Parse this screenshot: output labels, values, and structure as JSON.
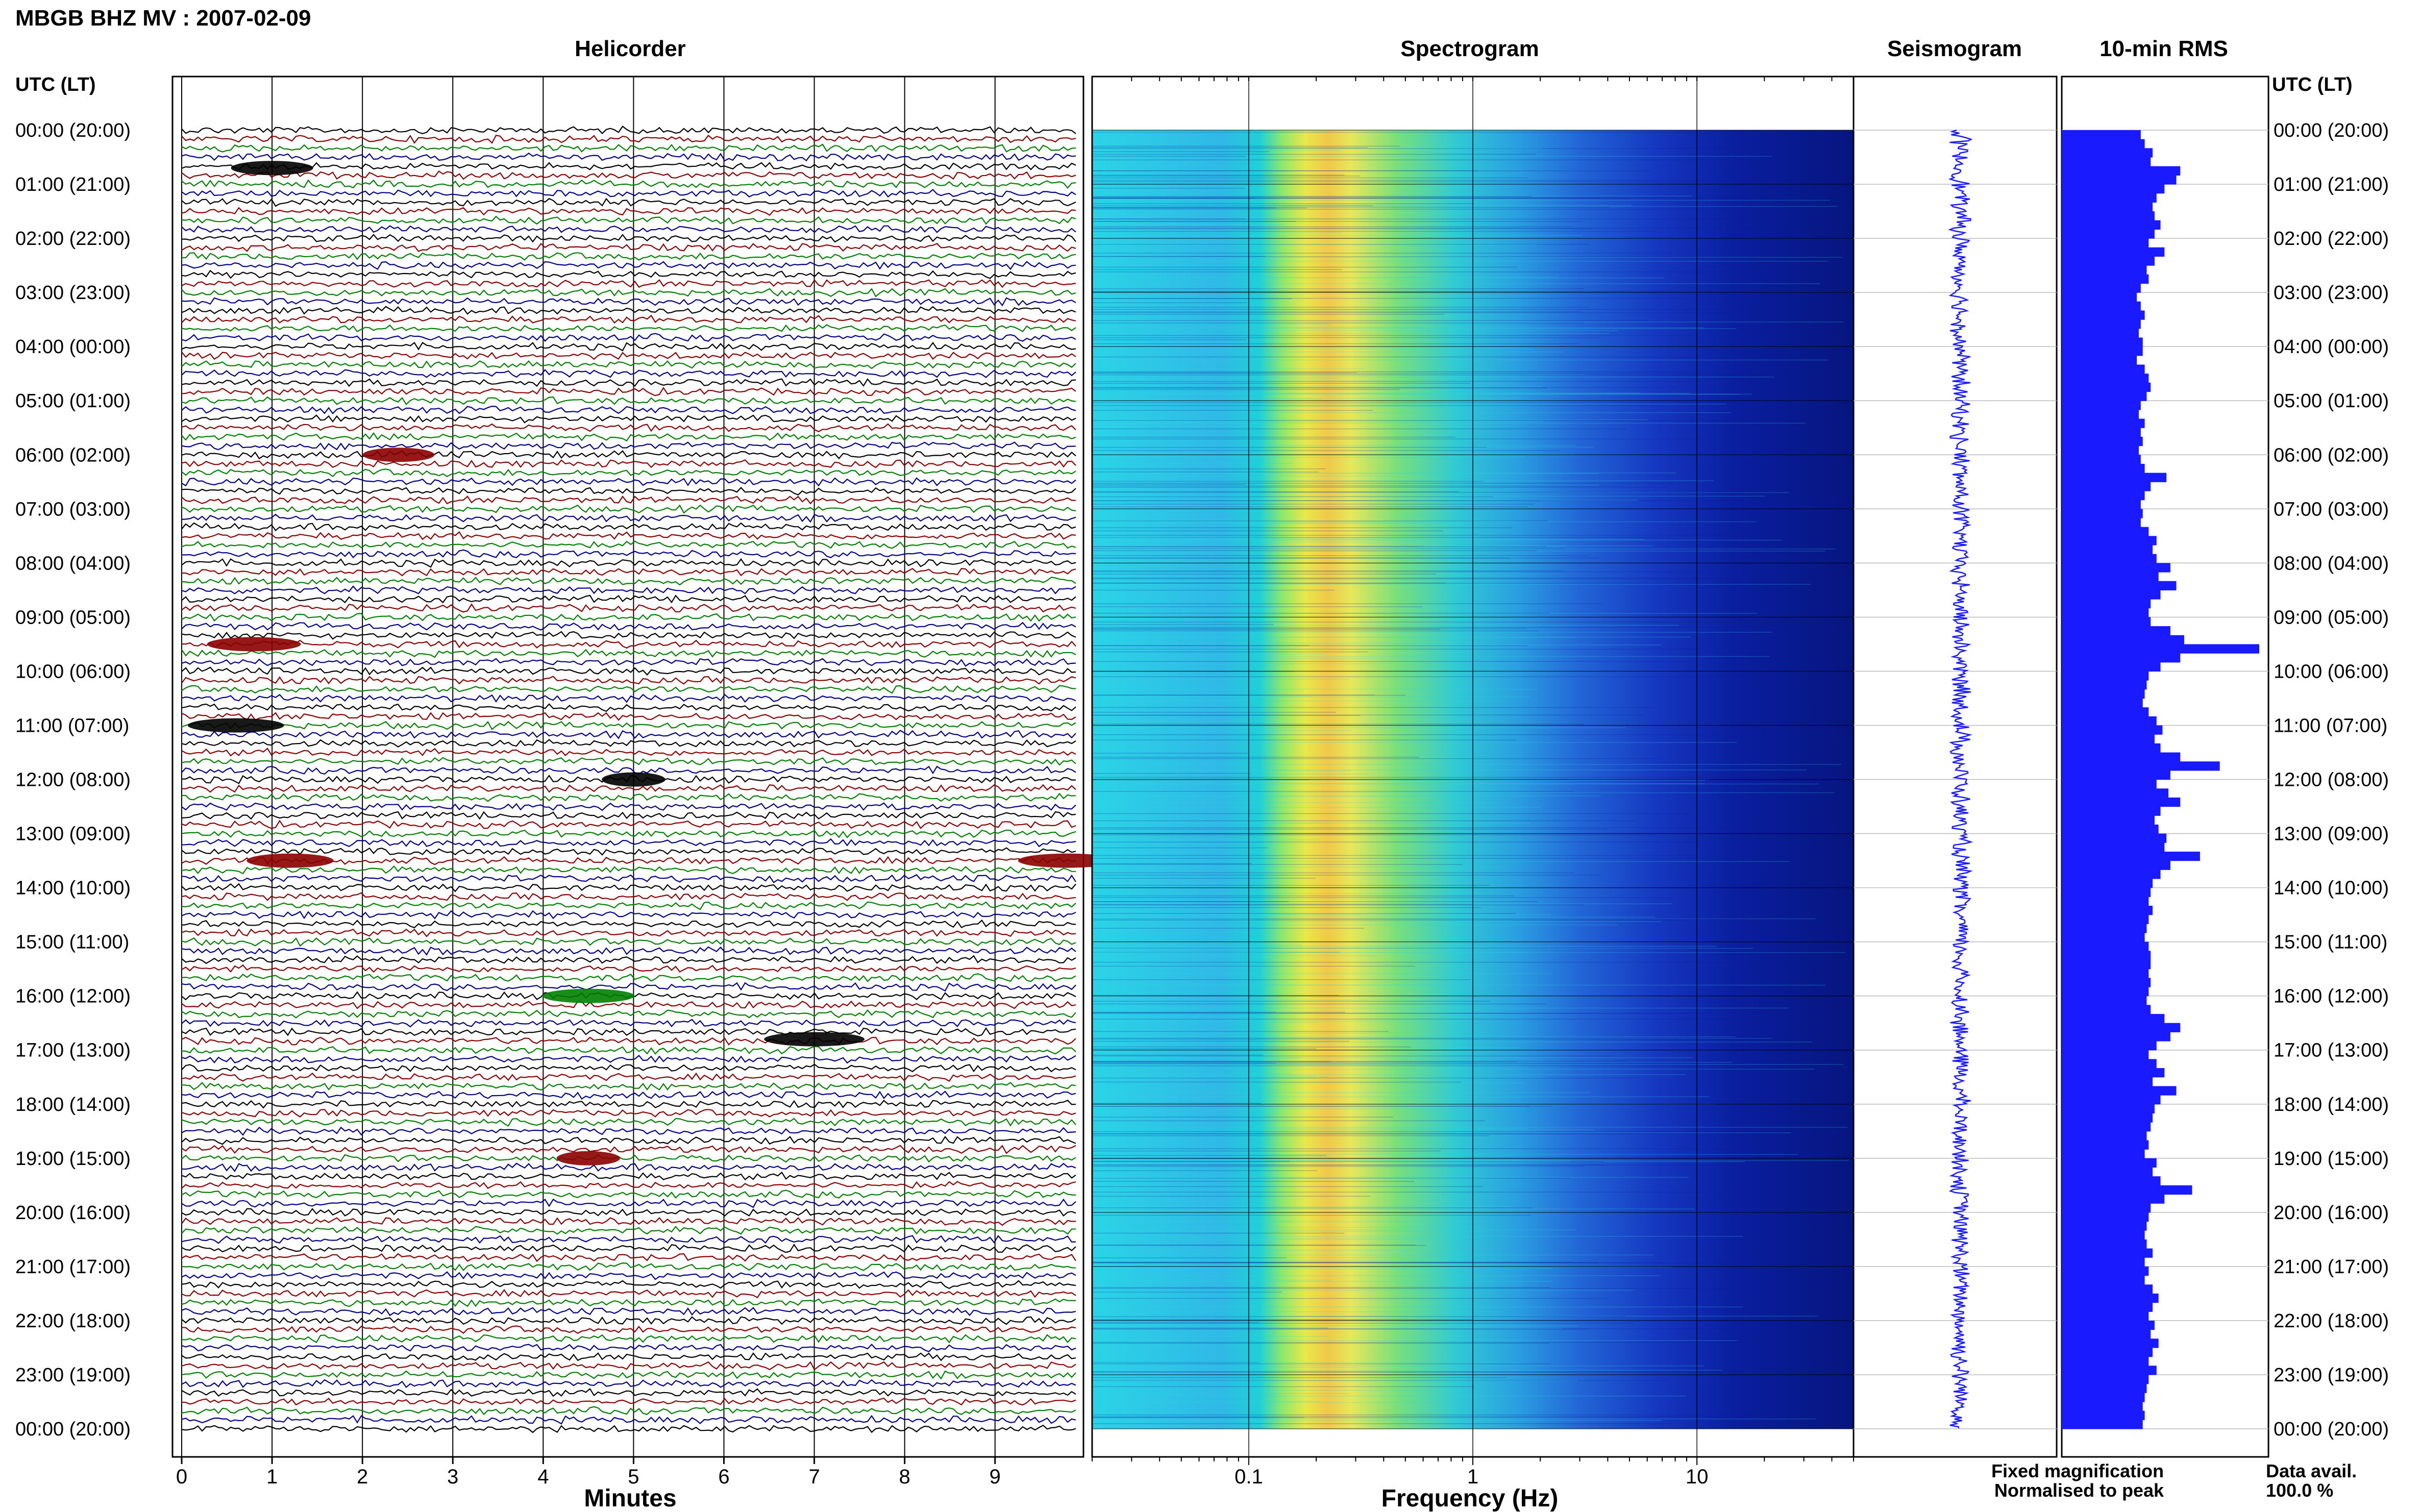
{
  "header": {
    "title": "MBGB BHZ MV : 2007-02-09",
    "utc_label_left": "UTC (LT)",
    "utc_label_right": "UTC (LT)"
  },
  "panels": {
    "helicorder": "Helicorder",
    "spectrogram": "Spectrogram",
    "seismogram": "Seismogram",
    "rms": "10-min RMS"
  },
  "axes": {
    "minutes_label": "Minutes",
    "frequency_label": "Frequency (Hz)",
    "minutes_ticks": [
      "0",
      "1",
      "2",
      "3",
      "4",
      "5",
      "6",
      "7",
      "8",
      "9"
    ],
    "frequency_ticks": [
      "0.1",
      "1",
      "10"
    ]
  },
  "time_labels": [
    "00:00 (20:00)",
    "01:00 (21:00)",
    "02:00 (22:00)",
    "03:00 (23:00)",
    "04:00 (00:00)",
    "05:00 (01:00)",
    "06:00 (02:00)",
    "07:00 (03:00)",
    "08:00 (04:00)",
    "09:00 (05:00)",
    "10:00 (06:00)",
    "11:00 (07:00)",
    "12:00 (08:00)",
    "13:00 (09:00)",
    "14:00 (10:00)",
    "15:00 (11:00)",
    "16:00 (12:00)",
    "17:00 (13:00)",
    "18:00 (14:00)",
    "19:00 (15:00)",
    "20:00 (16:00)",
    "21:00 (17:00)",
    "22:00 (18:00)",
    "23:00 (19:00)",
    "00:00 (20:00)"
  ],
  "legend": {
    "fixed": "Fixed magnification",
    "fixed_color": "#1a1aff",
    "normalised": "Normalised to peak",
    "normalised_color": "#ff1a1a"
  },
  "availability": {
    "label": "Data avail.",
    "value": "100.0 %"
  },
  "colors": {
    "trace_cycle": [
      "#000000",
      "#8b0000",
      "#008000",
      "#00008b"
    ],
    "seismogram": "#1a1aff",
    "rms_bar": "#1a1aff"
  },
  "chart_data": {
    "type": "bar",
    "name": "10-min RMS",
    "interval_minutes": 10,
    "unit": "relative",
    "x_domain_hours_utc": [
      0,
      24
    ],
    "values": [
      0.4,
      0.42,
      0.46,
      0.45,
      0.6,
      0.58,
      0.52,
      0.48,
      0.46,
      0.47,
      0.5,
      0.47,
      0.44,
      0.52,
      0.47,
      0.43,
      0.44,
      0.4,
      0.38,
      0.4,
      0.42,
      0.4,
      0.39,
      0.41,
      0.41,
      0.38,
      0.42,
      0.44,
      0.45,
      0.43,
      0.4,
      0.39,
      0.42,
      0.4,
      0.41,
      0.39,
      0.4,
      0.42,
      0.53,
      0.45,
      0.42,
      0.4,
      0.41,
      0.4,
      0.44,
      0.48,
      0.46,
      0.48,
      0.55,
      0.49,
      0.58,
      0.5,
      0.45,
      0.44,
      0.45,
      0.55,
      0.62,
      1.0,
      0.6,
      0.5,
      0.44,
      0.43,
      0.42,
      0.41,
      0.44,
      0.48,
      0.51,
      0.47,
      0.5,
      0.6,
      0.8,
      0.55,
      0.48,
      0.54,
      0.6,
      0.5,
      0.47,
      0.49,
      0.53,
      0.52,
      0.7,
      0.55,
      0.5,
      0.46,
      0.45,
      0.44,
      0.46,
      0.44,
      0.43,
      0.42,
      0.44,
      0.45,
      0.45,
      0.44,
      0.45,
      0.44,
      0.43,
      0.45,
      0.52,
      0.6,
      0.55,
      0.48,
      0.44,
      0.48,
      0.52,
      0.46,
      0.58,
      0.5,
      0.47,
      0.46,
      0.45,
      0.43,
      0.44,
      0.42,
      0.48,
      0.46,
      0.5,
      0.66,
      0.52,
      0.45,
      0.44,
      0.43,
      0.42,
      0.43,
      0.46,
      0.42,
      0.44,
      0.42,
      0.46,
      0.49,
      0.46,
      0.44,
      0.47,
      0.45,
      0.49,
      0.46,
      0.44,
      0.48,
      0.44,
      0.43,
      0.42,
      0.41,
      0.42,
      0.41
    ]
  }
}
